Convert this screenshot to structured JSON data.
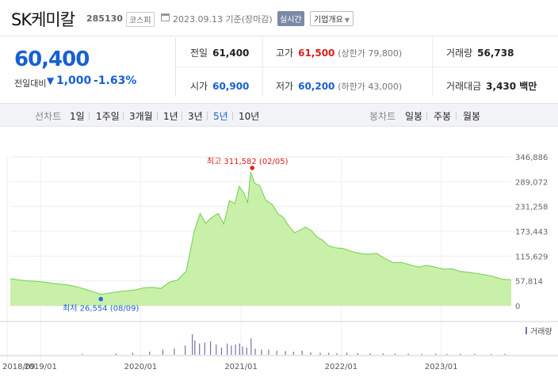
{
  "header": {
    "name": "SK케미칼",
    "code": "285130",
    "market": "코스피",
    "date": "2023.09.13 기준(장마감)",
    "realtime": "실시간",
    "company_info": "기업개요"
  },
  "price": {
    "current": "60,400",
    "change_label": "전일대비",
    "change_value": "1,000",
    "change_pct": "-1.63%",
    "direction": "down",
    "down_color": "#1760d2",
    "up_color": "#d61e1e"
  },
  "stats": {
    "prev_close": {
      "label": "전일",
      "value": "61,400"
    },
    "high": {
      "label": "고가",
      "value": "61,500",
      "extra": "(상한가 79,800)"
    },
    "volume": {
      "label": "거래량",
      "value": "56,738"
    },
    "open": {
      "label": "시가",
      "value": "60,900"
    },
    "low": {
      "label": "저가",
      "value": "60,200",
      "extra": "(하한가 43,000)"
    },
    "trade_amount": {
      "label": "거래대금",
      "value": "3,430 백만"
    }
  },
  "tabs": {
    "line_label": "선차트",
    "line": [
      "1일",
      "1주일",
      "3개월",
      "1년",
      "3년",
      "5년",
      "10년"
    ],
    "active": "5년",
    "candle_label": "봉차트",
    "candle": [
      "일봉",
      "주봉",
      "월봉"
    ]
  },
  "chart_data": {
    "type": "area",
    "title": "",
    "xlabel": "",
    "ylabel": "",
    "x_ticks": [
      "2018/09",
      "2019/01",
      "2020/01",
      "2021/01",
      "2022/01",
      "2023/01"
    ],
    "y_ticks": [
      "346,886",
      "289,072",
      "231,258",
      "173,443",
      "115,629",
      "57,814",
      "0"
    ],
    "ylim": [
      0,
      346886
    ],
    "xlim": [
      "2018-09-13",
      "2023-09-13"
    ],
    "fill_color": "#c9f0a8",
    "line_color": "#6fcf50",
    "high_annotation": {
      "text": "최고 311,582 (02/05)",
      "date": "2021-02-05",
      "value": 311582
    },
    "low_annotation": {
      "text": "최저 26,554 (08/09)",
      "date": "2019-08-09",
      "value": 26554
    },
    "series": [
      {
        "values": [
          [
            "2018-09-13",
            63000
          ],
          [
            "2018-10-15",
            60000
          ],
          [
            "2018-11-15",
            58000
          ],
          [
            "2018-12-15",
            57000
          ],
          [
            "2019-01-15",
            55000
          ],
          [
            "2019-02-15",
            52000
          ],
          [
            "2019-03-15",
            50000
          ],
          [
            "2019-04-15",
            48000
          ],
          [
            "2019-05-15",
            44000
          ],
          [
            "2019-06-15",
            38000
          ],
          [
            "2019-07-15",
            32000
          ],
          [
            "2019-08-09",
            26554
          ],
          [
            "2019-09-15",
            30000
          ],
          [
            "2019-10-15",
            33000
          ],
          [
            "2019-11-15",
            35000
          ],
          [
            "2019-12-15",
            37000
          ],
          [
            "2020-01-15",
            42000
          ],
          [
            "2020-02-15",
            43000
          ],
          [
            "2020-03-15",
            40000
          ],
          [
            "2020-04-15",
            55000
          ],
          [
            "2020-05-15",
            60000
          ],
          [
            "2020-06-15",
            80000
          ],
          [
            "2020-07-15",
            175000
          ],
          [
            "2020-08-05",
            215000
          ],
          [
            "2020-08-25",
            192000
          ],
          [
            "2020-09-15",
            205000
          ],
          [
            "2020-10-10",
            215000
          ],
          [
            "2020-10-30",
            190000
          ],
          [
            "2020-11-20",
            245000
          ],
          [
            "2020-12-10",
            238000
          ],
          [
            "2020-12-25",
            278000
          ],
          [
            "2021-01-10",
            264000
          ],
          [
            "2021-01-25",
            240000
          ],
          [
            "2021-02-05",
            311582
          ],
          [
            "2021-02-20",
            285000
          ],
          [
            "2021-03-10",
            280000
          ],
          [
            "2021-04-01",
            246000
          ],
          [
            "2021-04-25",
            236000
          ],
          [
            "2021-05-15",
            215000
          ],
          [
            "2021-06-05",
            205000
          ],
          [
            "2021-06-25",
            185000
          ],
          [
            "2021-07-15",
            170000
          ],
          [
            "2021-08-10",
            178000
          ],
          [
            "2021-08-25",
            183000
          ],
          [
            "2021-09-15",
            175000
          ],
          [
            "2021-10-05",
            160000
          ],
          [
            "2021-10-25",
            153000
          ],
          [
            "2021-11-15",
            140000
          ],
          [
            "2021-12-10",
            135000
          ],
          [
            "2022-01-10",
            133000
          ],
          [
            "2022-02-10",
            126000
          ],
          [
            "2022-03-10",
            122000
          ],
          [
            "2022-04-10",
            120000
          ],
          [
            "2022-05-10",
            122000
          ],
          [
            "2022-06-10",
            110000
          ],
          [
            "2022-07-10",
            100000
          ],
          [
            "2022-08-10",
            101000
          ],
          [
            "2022-09-10",
            95000
          ],
          [
            "2022-10-10",
            90000
          ],
          [
            "2022-11-10",
            94000
          ],
          [
            "2022-12-10",
            90000
          ],
          [
            "2023-01-10",
            85000
          ],
          [
            "2023-02-10",
            86000
          ],
          [
            "2023-03-10",
            80000
          ],
          [
            "2023-04-10",
            78000
          ],
          [
            "2023-05-10",
            75000
          ],
          [
            "2023-06-10",
            72000
          ],
          [
            "2023-07-10",
            68000
          ],
          [
            "2023-08-10",
            62000
          ],
          [
            "2023-09-13",
            60400
          ]
        ]
      }
    ],
    "volume_legend": "거래량",
    "volume_color": "#7a6fa6",
    "volume_relative": [
      [
        "2019-06-01",
        0.05
      ],
      [
        "2019-10-01",
        0.07
      ],
      [
        "2019-12-01",
        0.1
      ],
      [
        "2020-02-01",
        0.15
      ],
      [
        "2020-03-20",
        0.25
      ],
      [
        "2020-05-01",
        0.3
      ],
      [
        "2020-06-10",
        0.45
      ],
      [
        "2020-07-06",
        1.0
      ],
      [
        "2020-07-15",
        0.7
      ],
      [
        "2020-08-01",
        0.55
      ],
      [
        "2020-08-20",
        0.6
      ],
      [
        "2020-09-10",
        0.65
      ],
      [
        "2020-10-01",
        0.5
      ],
      [
        "2020-10-20",
        0.35
      ],
      [
        "2020-11-10",
        0.55
      ],
      [
        "2020-11-25",
        0.45
      ],
      [
        "2020-12-10",
        0.5
      ],
      [
        "2020-12-25",
        0.55
      ],
      [
        "2021-01-05",
        0.4
      ],
      [
        "2021-01-20",
        0.35
      ],
      [
        "2021-02-05",
        0.8
      ],
      [
        "2021-02-20",
        0.3
      ],
      [
        "2021-03-15",
        0.25
      ],
      [
        "2021-04-10",
        0.25
      ],
      [
        "2021-05-10",
        0.2
      ],
      [
        "2021-06-10",
        0.18
      ],
      [
        "2021-07-10",
        0.15
      ],
      [
        "2021-08-10",
        0.2
      ],
      [
        "2021-09-10",
        0.12
      ],
      [
        "2021-10-15",
        0.1
      ],
      [
        "2021-11-15",
        0.1
      ],
      [
        "2021-12-15",
        0.08
      ],
      [
        "2022-01-20",
        0.1
      ],
      [
        "2022-03-01",
        0.08
      ],
      [
        "2022-04-15",
        0.07
      ],
      [
        "2022-06-01",
        0.07
      ],
      [
        "2022-07-15",
        0.06
      ],
      [
        "2022-09-01",
        0.06
      ],
      [
        "2022-10-20",
        0.05
      ],
      [
        "2022-12-10",
        0.06
      ],
      [
        "2023-01-20",
        0.05
      ],
      [
        "2023-03-10",
        0.05
      ],
      [
        "2023-05-01",
        0.05
      ],
      [
        "2023-07-01",
        0.04
      ],
      [
        "2023-08-20",
        0.05
      ]
    ]
  }
}
